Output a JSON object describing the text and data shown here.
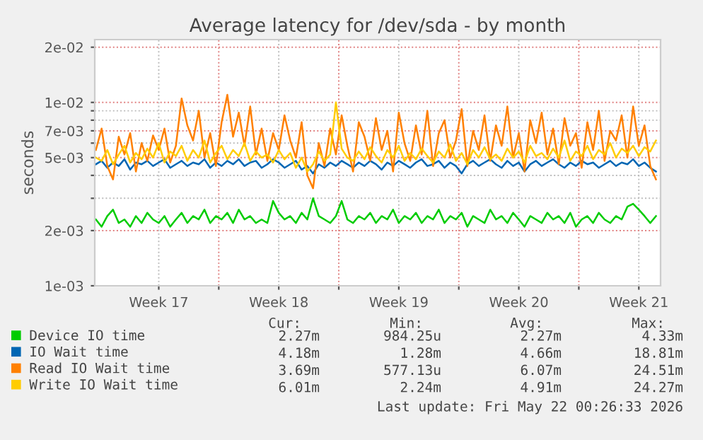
{
  "chart_data": {
    "type": "line",
    "title": "Average latency for /dev/sda - by month",
    "ylabel": "seconds",
    "log": "y",
    "grid": true,
    "legend": "bottom",
    "marker": "none",
    "line_style": "solid",
    "ylim": [
      0.001,
      0.022
    ],
    "yticks": [
      {
        "value": 0.001,
        "label": "1e-03"
      },
      {
        "value": 0.002,
        "label": "2e-03"
      },
      {
        "value": 0.003,
        "label": null
      },
      {
        "value": 0.004,
        "label": null
      },
      {
        "value": 0.005,
        "label": "5e-03"
      },
      {
        "value": 0.006,
        "label": null
      },
      {
        "value": 0.007,
        "label": "7e-03"
      },
      {
        "value": 0.008,
        "label": null
      },
      {
        "value": 0.009,
        "label": null
      },
      {
        "value": 0.01,
        "label": "1e-02"
      },
      {
        "value": 0.02,
        "label": "2e-02"
      }
    ],
    "xlim": [
      "2026-04-19T00:26",
      "2026-05-22T00:26"
    ],
    "xticks": [
      {
        "value": "2026-04-22T18:00",
        "label": "Week 17"
      },
      {
        "value": "2026-04-26T06:00",
        "label": null
      },
      {
        "value": "2026-04-29T18:00",
        "label": "Week 18"
      },
      {
        "value": "2026-05-03T06:00",
        "label": null
      },
      {
        "value": "2026-05-06T18:00",
        "label": "Week 19"
      },
      {
        "value": "2026-05-10T06:00",
        "label": null
      },
      {
        "value": "2026-05-13T18:00",
        "label": "Week 20"
      },
      {
        "value": "2026-05-17T06:00",
        "label": null
      },
      {
        "value": "2026-05-20T18:00",
        "label": "Week 21"
      }
    ],
    "x": [
      "2026-04-19T02:00",
      "2026-04-19T10:00",
      "2026-04-19T18:00",
      "2026-04-20T02:00",
      "2026-04-20T10:00",
      "2026-04-20T18:00",
      "2026-04-21T02:00",
      "2026-04-21T10:00",
      "2026-04-21T18:00",
      "2026-04-22T02:00",
      "2026-04-22T10:00",
      "2026-04-22T18:00",
      "2026-04-23T02:00",
      "2026-04-23T10:00",
      "2026-04-23T18:00",
      "2026-04-24T02:00",
      "2026-04-24T10:00",
      "2026-04-24T18:00",
      "2026-04-25T02:00",
      "2026-04-25T10:00",
      "2026-04-25T18:00",
      "2026-04-26T02:00",
      "2026-04-26T10:00",
      "2026-04-26T18:00",
      "2026-04-27T02:00",
      "2026-04-27T10:00",
      "2026-04-27T18:00",
      "2026-04-28T02:00",
      "2026-04-28T10:00",
      "2026-04-28T18:00",
      "2026-04-29T02:00",
      "2026-04-29T10:00",
      "2026-04-29T18:00",
      "2026-04-30T02:00",
      "2026-04-30T10:00",
      "2026-04-30T18:00",
      "2026-05-01T02:00",
      "2026-05-01T10:00",
      "2026-05-01T18:00",
      "2026-05-02T02:00",
      "2026-05-02T10:00",
      "2026-05-02T18:00",
      "2026-05-03T02:00",
      "2026-05-03T10:00",
      "2026-05-03T18:00",
      "2026-05-04T02:00",
      "2026-05-04T10:00",
      "2026-05-04T18:00",
      "2026-05-05T02:00",
      "2026-05-05T10:00",
      "2026-05-05T18:00",
      "2026-05-06T02:00",
      "2026-05-06T10:00",
      "2026-05-06T18:00",
      "2026-05-07T02:00",
      "2026-05-07T10:00",
      "2026-05-07T18:00",
      "2026-05-08T02:00",
      "2026-05-08T10:00",
      "2026-05-08T18:00",
      "2026-05-09T02:00",
      "2026-05-09T10:00",
      "2026-05-09T18:00",
      "2026-05-10T02:00",
      "2026-05-10T10:00",
      "2026-05-10T18:00",
      "2026-05-11T02:00",
      "2026-05-11T10:00",
      "2026-05-11T18:00",
      "2026-05-12T02:00",
      "2026-05-12T10:00",
      "2026-05-12T18:00",
      "2026-05-13T02:00",
      "2026-05-13T10:00",
      "2026-05-13T18:00",
      "2026-05-14T02:00",
      "2026-05-14T10:00",
      "2026-05-14T18:00",
      "2026-05-15T02:00",
      "2026-05-15T10:00",
      "2026-05-15T18:00",
      "2026-05-16T02:00",
      "2026-05-16T10:00",
      "2026-05-16T18:00",
      "2026-05-17T02:00",
      "2026-05-17T10:00",
      "2026-05-17T18:00",
      "2026-05-18T02:00",
      "2026-05-18T10:00",
      "2026-05-18T18:00",
      "2026-05-19T02:00",
      "2026-05-19T10:00",
      "2026-05-19T18:00",
      "2026-05-20T02:00",
      "2026-05-20T10:00",
      "2026-05-20T18:00",
      "2026-05-21T02:00",
      "2026-05-21T10:00",
      "2026-05-21T18:00"
    ],
    "series": [
      {
        "name": "Device IO time",
        "color": "#00cc00",
        "values": [
          0.0023,
          0.0021,
          0.0024,
          0.0026,
          0.0022,
          0.0023,
          0.0021,
          0.0024,
          0.0022,
          0.0025,
          0.0023,
          0.0022,
          0.0024,
          0.0021,
          0.0023,
          0.0025,
          0.0022,
          0.0024,
          0.0023,
          0.0026,
          0.0022,
          0.0024,
          0.0023,
          0.0025,
          0.0022,
          0.0026,
          0.0023,
          0.0024,
          0.0022,
          0.0023,
          0.0022,
          0.0029,
          0.0025,
          0.0023,
          0.0024,
          0.0022,
          0.0025,
          0.0023,
          0.003,
          0.0024,
          0.0023,
          0.0022,
          0.0024,
          0.0029,
          0.0023,
          0.0022,
          0.0024,
          0.0023,
          0.0025,
          0.0022,
          0.0024,
          0.0023,
          0.0026,
          0.0022,
          0.0024,
          0.0023,
          0.0025,
          0.0022,
          0.0024,
          0.0023,
          0.0026,
          0.0022,
          0.0024,
          0.0023,
          0.0025,
          0.0021,
          0.0024,
          0.0023,
          0.0022,
          0.0026,
          0.0023,
          0.0024,
          0.0022,
          0.0025,
          0.0023,
          0.0021,
          0.0024,
          0.0023,
          0.0022,
          0.0025,
          0.0023,
          0.0024,
          0.0022,
          0.0025,
          0.0021,
          0.0023,
          0.0024,
          0.0022,
          0.0025,
          0.0023,
          0.0022,
          0.0024,
          0.0023,
          0.0027,
          0.0028,
          0.0026,
          0.0024,
          0.0022,
          0.0024
        ]
      },
      {
        "name": "IO Wait time",
        "color": "#0066b3",
        "values": [
          0.0046,
          0.0048,
          0.0044,
          0.0047,
          0.0045,
          0.0049,
          0.0043,
          0.0047,
          0.0046,
          0.0048,
          0.0045,
          0.0047,
          0.0049,
          0.0044,
          0.0046,
          0.0048,
          0.0045,
          0.0047,
          0.0046,
          0.0049,
          0.0044,
          0.0047,
          0.0045,
          0.0048,
          0.0046,
          0.0049,
          0.0045,
          0.0047,
          0.0048,
          0.0044,
          0.0046,
          0.0049,
          0.0047,
          0.0044,
          0.0046,
          0.0048,
          0.0043,
          0.0045,
          0.0041,
          0.0046,
          0.0044,
          0.0047,
          0.0045,
          0.0048,
          0.0046,
          0.0044,
          0.0047,
          0.0045,
          0.0048,
          0.0046,
          0.0043,
          0.0047,
          0.0045,
          0.0048,
          0.0046,
          0.0044,
          0.0047,
          0.0049,
          0.0045,
          0.0046,
          0.0048,
          0.0044,
          0.0047,
          0.0045,
          0.0041,
          0.0046,
          0.0048,
          0.0045,
          0.0047,
          0.0049,
          0.0046,
          0.0044,
          0.0048,
          0.0045,
          0.0047,
          0.0042,
          0.0046,
          0.0048,
          0.0045,
          0.0047,
          0.0049,
          0.0046,
          0.0044,
          0.0047,
          0.0045,
          0.0048,
          0.0046,
          0.0047,
          0.0044,
          0.0046,
          0.0048,
          0.0045,
          0.0047,
          0.0046,
          0.0049,
          0.0045,
          0.0047,
          0.0044,
          0.0042
        ]
      },
      {
        "name": "Read IO Wait time",
        "color": "#ff8000",
        "values": [
          0.0055,
          0.0072,
          0.0045,
          0.0038,
          0.0065,
          0.0052,
          0.0068,
          0.0042,
          0.006,
          0.0048,
          0.0066,
          0.0055,
          0.0072,
          0.0047,
          0.0058,
          0.0105,
          0.0075,
          0.0062,
          0.009,
          0.005,
          0.0068,
          0.0045,
          0.0078,
          0.011,
          0.0065,
          0.0088,
          0.0058,
          0.0095,
          0.0052,
          0.0072,
          0.0048,
          0.0068,
          0.0055,
          0.0085,
          0.0062,
          0.005,
          0.0078,
          0.004,
          0.0034,
          0.006,
          0.0045,
          0.0072,
          0.0052,
          0.0085,
          0.0058,
          0.0042,
          0.0078,
          0.0065,
          0.0048,
          0.0082,
          0.0055,
          0.007,
          0.0042,
          0.0088,
          0.006,
          0.0048,
          0.0075,
          0.0052,
          0.009,
          0.0045,
          0.0068,
          0.008,
          0.005,
          0.0062,
          0.0092,
          0.0045,
          0.007,
          0.0055,
          0.0085,
          0.0048,
          0.0075,
          0.0058,
          0.0095,
          0.005,
          0.0068,
          0.0042,
          0.008,
          0.006,
          0.0088,
          0.0052,
          0.0072,
          0.0046,
          0.0082,
          0.0058,
          0.0068,
          0.0044,
          0.0078,
          0.0055,
          0.009,
          0.0048,
          0.007,
          0.0062,
          0.0085,
          0.005,
          0.0095,
          0.0058,
          0.0075,
          0.0045,
          0.0038
        ]
      },
      {
        "name": "Write IO Wait time",
        "color": "#ffcc00",
        "values": [
          0.005,
          0.0048,
          0.0055,
          0.0046,
          0.0052,
          0.0058,
          0.0047,
          0.0053,
          0.0049,
          0.0056,
          0.005,
          0.006,
          0.0047,
          0.0054,
          0.0051,
          0.0058,
          0.0048,
          0.0055,
          0.005,
          0.0062,
          0.0047,
          0.0053,
          0.0058,
          0.0049,
          0.0055,
          0.0051,
          0.006,
          0.0048,
          0.0054,
          0.005,
          0.0052,
          0.0047,
          0.0055,
          0.0049,
          0.0053,
          0.0044,
          0.005,
          0.0042,
          0.0046,
          0.0054,
          0.0048,
          0.0052,
          0.01,
          0.0056,
          0.005,
          0.0048,
          0.0054,
          0.0049,
          0.0057,
          0.0051,
          0.0047,
          0.0055,
          0.005,
          0.0058,
          0.0048,
          0.0053,
          0.0049,
          0.0056,
          0.0051,
          0.0047,
          0.0054,
          0.005,
          0.0059,
          0.0048,
          0.0053,
          0.0046,
          0.0055,
          0.005,
          0.0057,
          0.0049,
          0.0052,
          0.0048,
          0.0056,
          0.005,
          0.0054,
          0.0047,
          0.0058,
          0.0051,
          0.0053,
          0.0049,
          0.0056,
          0.005,
          0.0062,
          0.0048,
          0.0054,
          0.0051,
          0.0058,
          0.0049,
          0.0055,
          0.0052,
          0.006,
          0.005,
          0.0056,
          0.0053,
          0.0058,
          0.0051,
          0.0057,
          0.0054,
          0.0062
        ]
      }
    ],
    "annotations": [
      "Cur:",
      "Min:",
      "Avg:",
      "Max:",
      "2.27m",
      "984.25u",
      "2.27m",
      "4.33m",
      "4.18m",
      "1.28m",
      "4.66m",
      "18.81m",
      "3.69m",
      "577.13u",
      "6.07m",
      "24.51m",
      "6.01m",
      "2.24m",
      "4.91m",
      "24.27m",
      "Last update: Fri May 22 00:26:33 2026"
    ]
  }
}
